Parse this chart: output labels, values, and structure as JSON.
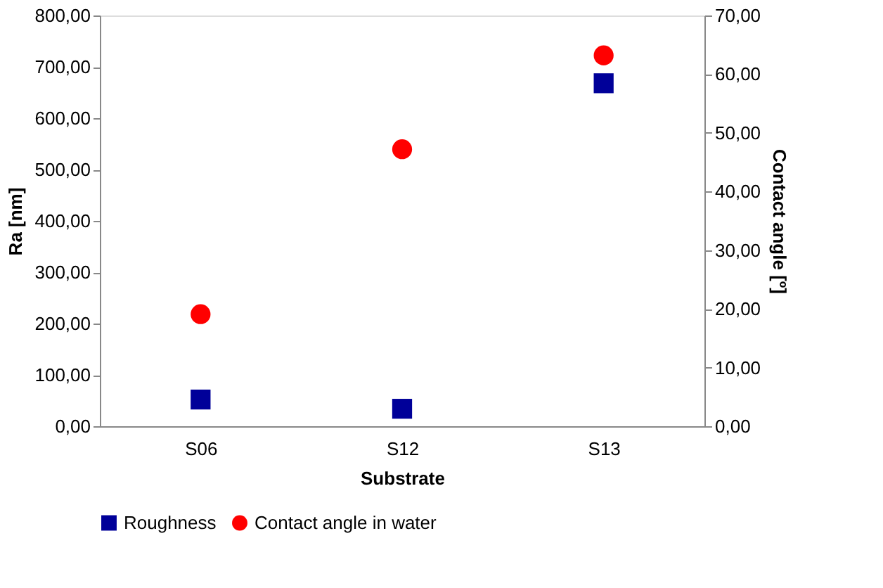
{
  "chart_data": {
    "type": "scatter",
    "xlabel": "Substrate",
    "ylabel": "Ra [nm]",
    "y2label": "Contact angle [º]",
    "categories": [
      "S06",
      "S12",
      "S13"
    ],
    "series": [
      {
        "name": "Roughness",
        "color": "#000099",
        "marker": "square",
        "values": [
          52,
          34,
          668
        ]
      },
      {
        "name": "Contact angle in water",
        "color": "#ff0000",
        "marker": "circle",
        "axis": "y2",
        "values": [
          19.1,
          47.2,
          63.2
        ]
      }
    ],
    "ylim": [
      0,
      800
    ],
    "yticks": [
      {
        "value": 0,
        "label": "0,00"
      },
      {
        "value": 100,
        "label": "100,00"
      },
      {
        "value": 200,
        "label": "200,00"
      },
      {
        "value": 300,
        "label": "300,00"
      },
      {
        "value": 400,
        "label": "400,00"
      },
      {
        "value": 500,
        "label": "500,00"
      },
      {
        "value": 600,
        "label": "600,00"
      },
      {
        "value": 700,
        "label": "700,00"
      },
      {
        "value": 800,
        "label": "800,00"
      }
    ],
    "y2lim": [
      0,
      70
    ],
    "y2ticks": [
      {
        "value": 0,
        "label": "0,00"
      },
      {
        "value": 10,
        "label": "10,00"
      },
      {
        "value": 20,
        "label": "20,00"
      },
      {
        "value": 30,
        "label": "30,00"
      },
      {
        "value": 40,
        "label": "40,00"
      },
      {
        "value": 50,
        "label": "50,00"
      },
      {
        "value": 60,
        "label": "60,00"
      },
      {
        "value": 70,
        "label": "70,00"
      }
    ],
    "grid": false,
    "legend": "bottom"
  }
}
